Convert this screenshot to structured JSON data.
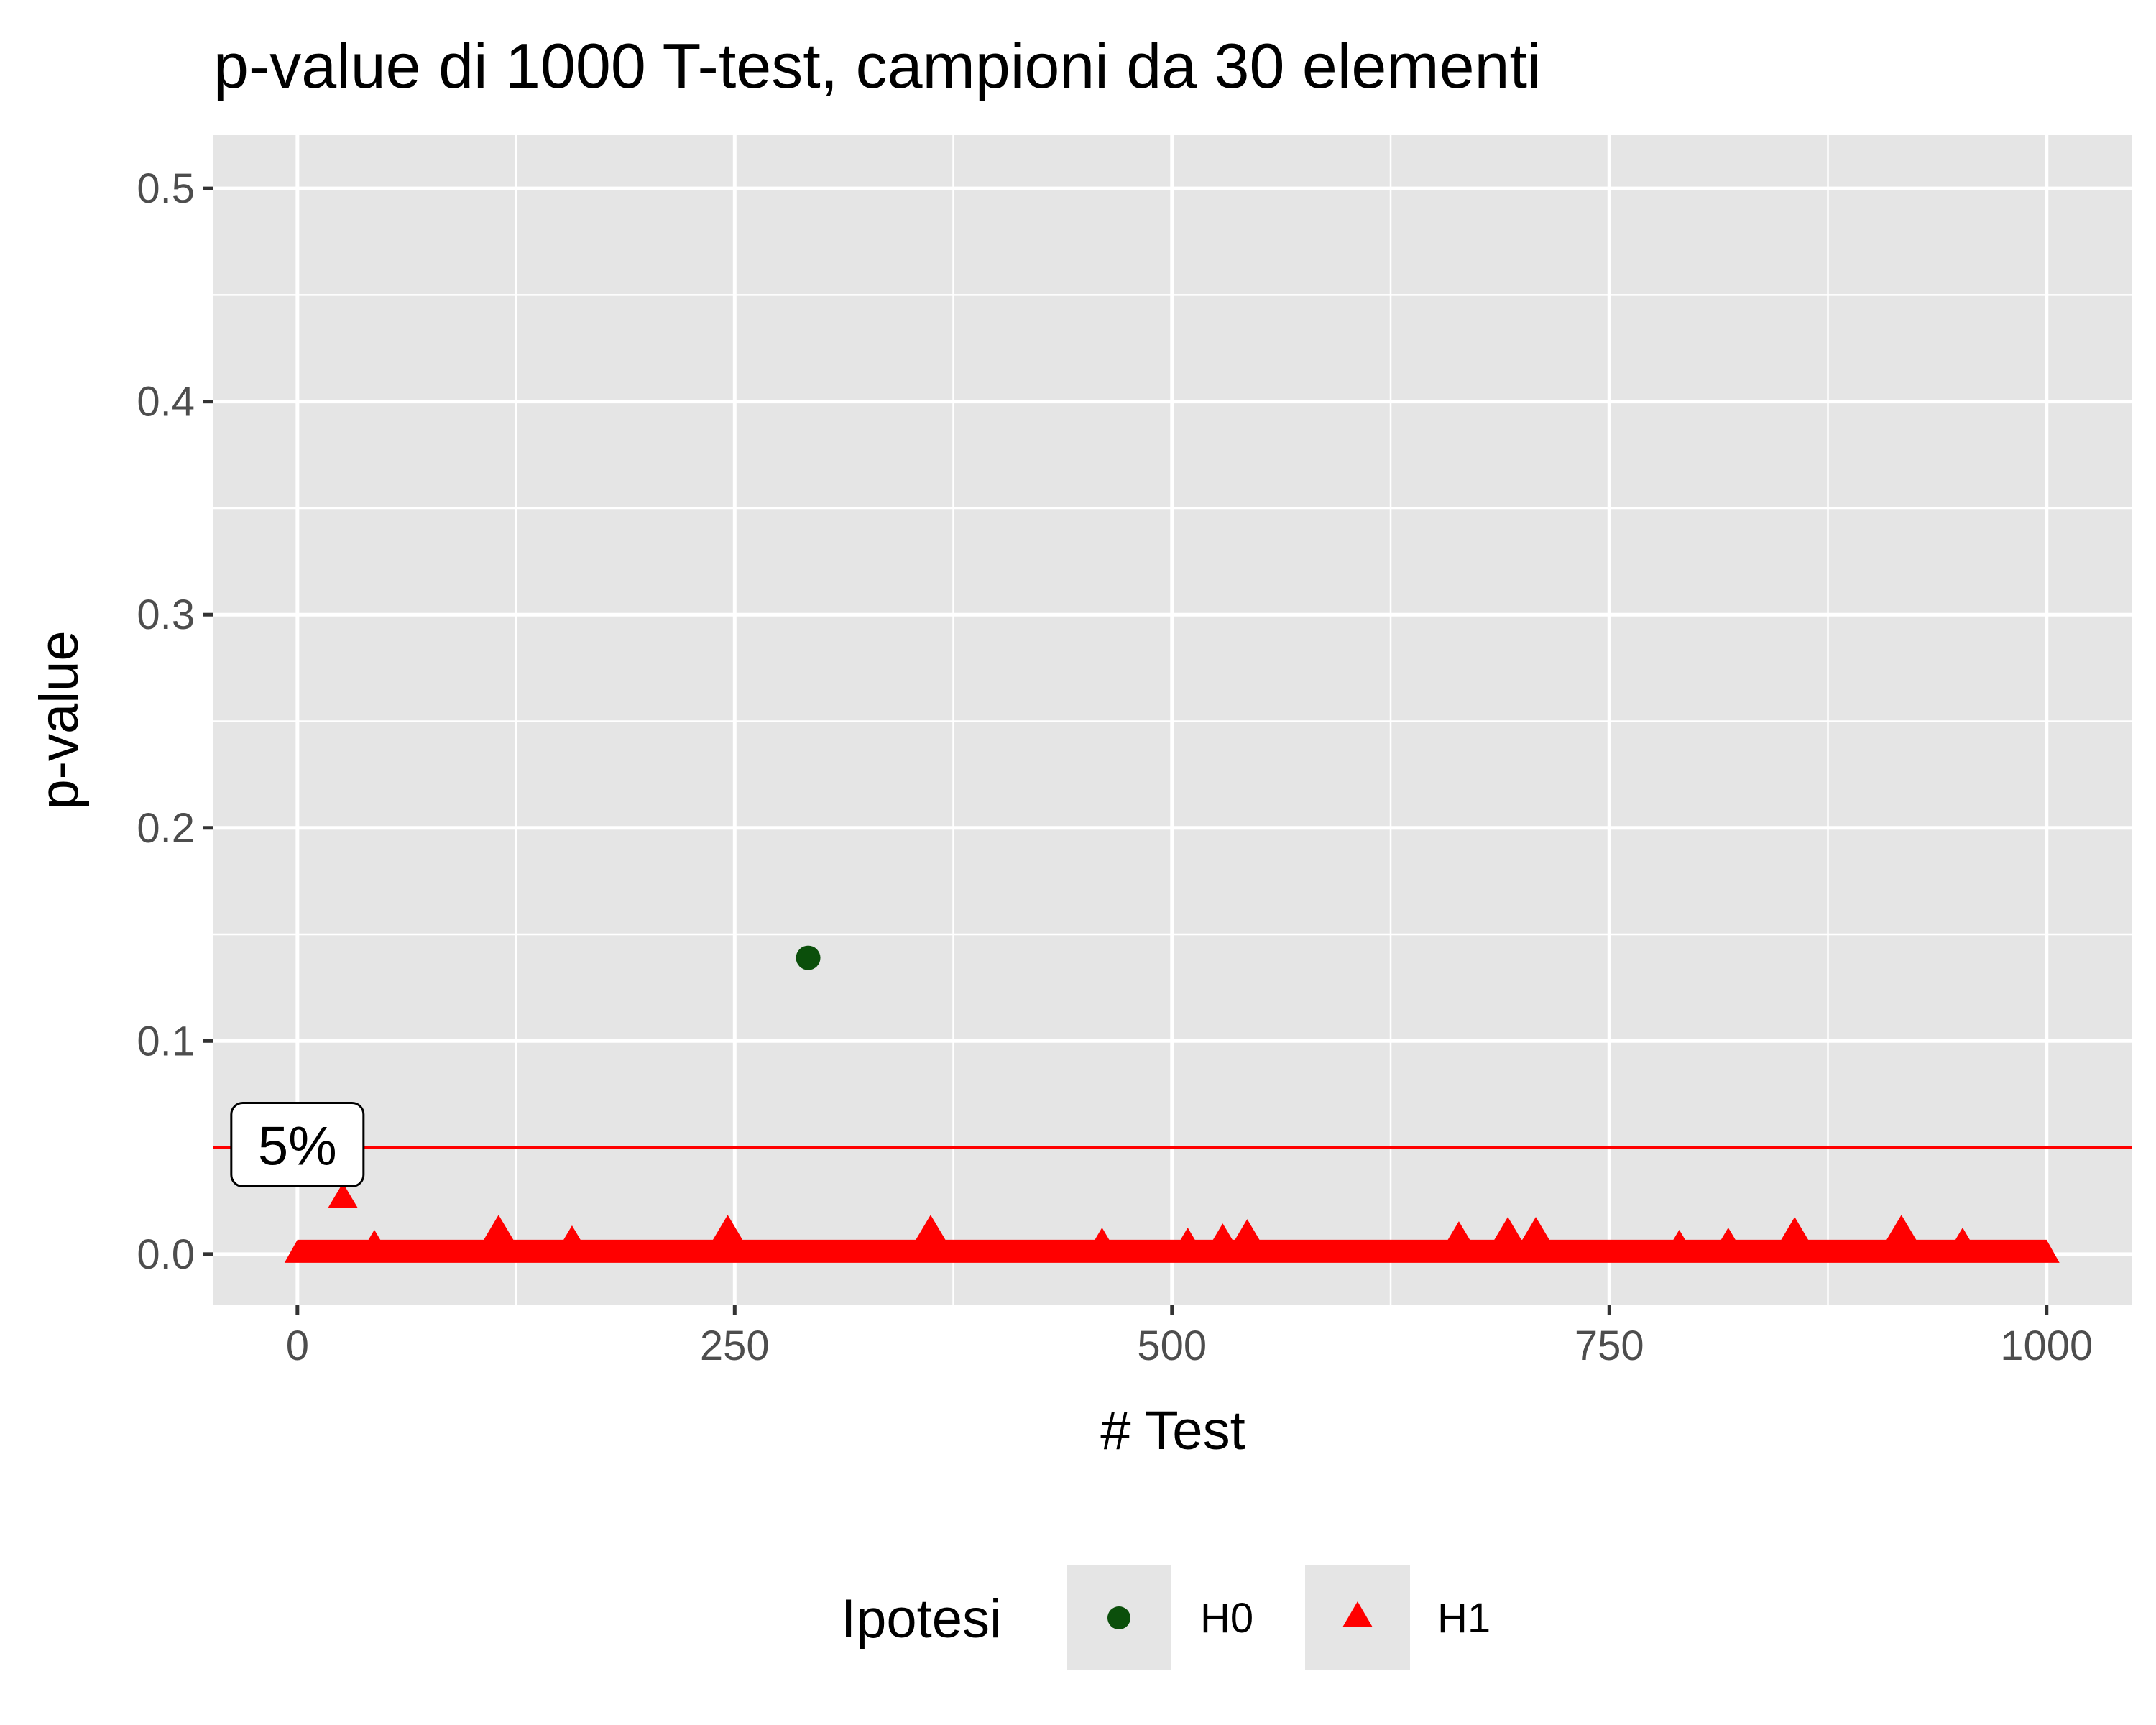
{
  "chart_data": {
    "type": "scatter",
    "title": "p-value di 1000 T-test, campioni da 30 elementi",
    "xlabel": "# Test",
    "ylabel": "p-value",
    "xlim": [
      -48,
      1049
    ],
    "ylim": [
      -0.024,
      0.525
    ],
    "x_ticks": [
      0,
      250,
      500,
      750,
      1000
    ],
    "x_tick_labels": [
      "0",
      "250",
      "500",
      "750",
      "1000"
    ],
    "y_ticks": [
      0.0,
      0.1,
      0.2,
      0.3,
      0.4,
      0.5
    ],
    "y_tick_labels": [
      "0.0",
      "0.1",
      "0.2",
      "0.3",
      "0.4",
      "0.5"
    ],
    "grid": true,
    "legend": {
      "title": "Ipotesi",
      "position": "bottom"
    },
    "series": [
      {
        "name": "H0",
        "marker": "circle",
        "color": "#0b4f0b",
        "points": [
          {
            "x": 292,
            "y": 0.139
          }
        ]
      },
      {
        "name": "H1",
        "marker": "triangle",
        "color": "#ff0000",
        "baseline_note": "remaining tests plotted at p-value ≈ 0",
        "points": [
          {
            "x": 26,
            "y": 0.026
          },
          {
            "x": 44,
            "y": 0.004
          },
          {
            "x": 115,
            "y": 0.011
          },
          {
            "x": 157,
            "y": 0.006
          },
          {
            "x": 246,
            "y": 0.011
          },
          {
            "x": 362,
            "y": 0.011
          },
          {
            "x": 460,
            "y": 0.005
          },
          {
            "x": 509,
            "y": 0.005
          },
          {
            "x": 529,
            "y": 0.007
          },
          {
            "x": 543,
            "y": 0.009
          },
          {
            "x": 664,
            "y": 0.008
          },
          {
            "x": 692,
            "y": 0.01
          },
          {
            "x": 708,
            "y": 0.01
          },
          {
            "x": 790,
            "y": 0.004
          },
          {
            "x": 818,
            "y": 0.005
          },
          {
            "x": 856,
            "y": 0.01
          },
          {
            "x": 917,
            "y": 0.011
          },
          {
            "x": 952,
            "y": 0.005
          }
        ]
      }
    ],
    "annotations": [
      {
        "type": "hline",
        "y": 0.05,
        "color": "#ff0000",
        "label": "5%",
        "label_x": 0
      }
    ]
  }
}
